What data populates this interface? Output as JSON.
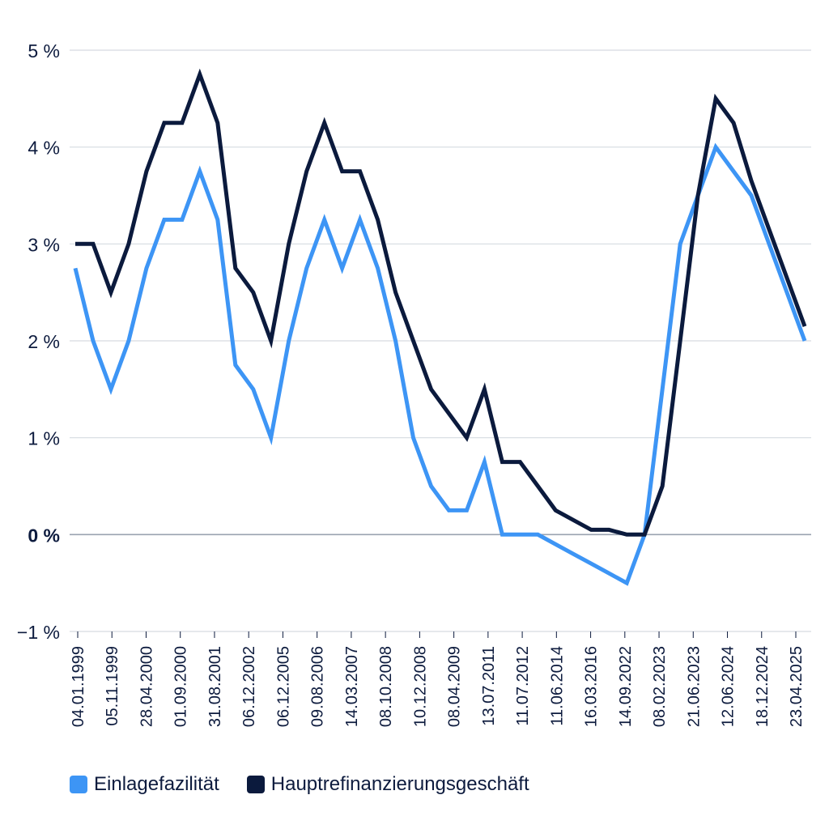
{
  "chart_data": {
    "type": "line",
    "ylim": [
      -1,
      5
    ],
    "yticks": [
      -1,
      0,
      1,
      2,
      3,
      4,
      5
    ],
    "ytick_labels": [
      "−1 %",
      "0 %",
      "1 %",
      "2 %",
      "3 %",
      "4 %",
      "5 %"
    ],
    "x": [
      "04.01.1999",
      "1999-03",
      "1999-04",
      "05.11.1999",
      "28.04.2000",
      "2000-06",
      "2000-07",
      "01.09.2000",
      "31.08.2001",
      "06.12.2002",
      "2003-03",
      "2003-06",
      "06.12.2005",
      "09.08.2006",
      "14.03.2007",
      "2008-07",
      "08.10.2008",
      "2008-11",
      "10.12.2008",
      "2009-01",
      "2009-03",
      "08.04.2009",
      "2009-05",
      "13.07.2011",
      "2011-11",
      "11.07.2012",
      "2013-05",
      "2013-11",
      "11.06.2014",
      "2014-09",
      "2015-12",
      "16.03.2016",
      "2022-07",
      "14.09.2022",
      "08.02.2023",
      "21.06.2023",
      "2023-09",
      "12.06.2024",
      "18.09.2024",
      "18.12.2024",
      "23.04.2025",
      "2025-06"
    ],
    "xtick_labels": [
      "04.01.1999",
      "05.11.1999",
      "28.04.2000",
      "01.09.2000",
      "31.08.2001",
      "06.12.2002",
      "06.12.2005",
      "09.08.2006",
      "14.03.2007",
      "08.10.2008",
      "10.12.2008",
      "08.04.2009",
      "13.07.2011",
      "11.07.2012",
      "11.06.2014",
      "16.03.2016",
      "14.09.2022",
      "08.02.2023",
      "21.06.2023",
      "12.06.2024",
      "18.12.2024",
      "23.04.2025"
    ],
    "series": [
      {
        "name": "Einlagefazilität",
        "color": "#3d95f5",
        "values": [
          2.75,
          2.0,
          1.5,
          2.0,
          2.75,
          3.25,
          3.25,
          3.75,
          3.25,
          1.75,
          1.5,
          1.0,
          2.0,
          2.75,
          3.25,
          2.75,
          3.25,
          2.75,
          2.0,
          1.0,
          0.5,
          0.25,
          0.25,
          0.75,
          0.0,
          0.0,
          0.0,
          -0.1,
          -0.2,
          -0.3,
          -0.4,
          -0.5,
          0.0,
          1.5,
          3.0,
          3.5,
          4.0,
          3.75,
          3.5,
          3.0,
          2.5,
          2.0
        ]
      },
      {
        "name": "Hauptrefinanzierungsgeschäft",
        "color": "#0b1a3d",
        "values": [
          3.0,
          3.0,
          2.5,
          3.0,
          3.75,
          4.25,
          4.25,
          4.75,
          4.25,
          2.75,
          2.5,
          2.0,
          3.0,
          3.75,
          4.25,
          3.75,
          3.75,
          3.25,
          2.5,
          2.0,
          1.5,
          1.25,
          1.0,
          1.5,
          0.75,
          0.75,
          0.5,
          0.25,
          0.15,
          0.05,
          0.05,
          0.0,
          0.0,
          0.5,
          2.0,
          3.5,
          4.5,
          4.25,
          3.65,
          3.15,
          2.65,
          2.15
        ]
      }
    ],
    "legend_position": "bottom-left",
    "grid": true
  }
}
